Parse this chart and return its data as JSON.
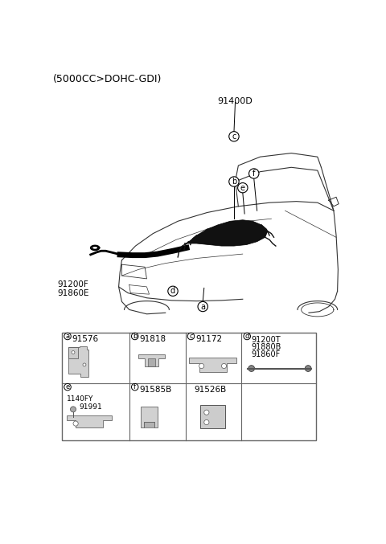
{
  "title_text": "(5000CC>DOHC-GDI)",
  "main_label": "91400D",
  "car_label_left1": "91200F",
  "car_label_left2": "91860E",
  "bg_color": "#ffffff",
  "line_color": "#000000",
  "cell_a_part": "91576",
  "cell_b_part": "91818",
  "cell_c_part": "91172",
  "cell_d_parts": [
    "91200T",
    "91880B",
    "91860F"
  ],
  "cell_f_part": "91585B",
  "cell_g_part": "91526B",
  "cell_e_sub1": "1140FY",
  "cell_e_sub2": "91991",
  "font_size_title": 9,
  "font_size_part": 7.5,
  "font_size_letter": 7
}
